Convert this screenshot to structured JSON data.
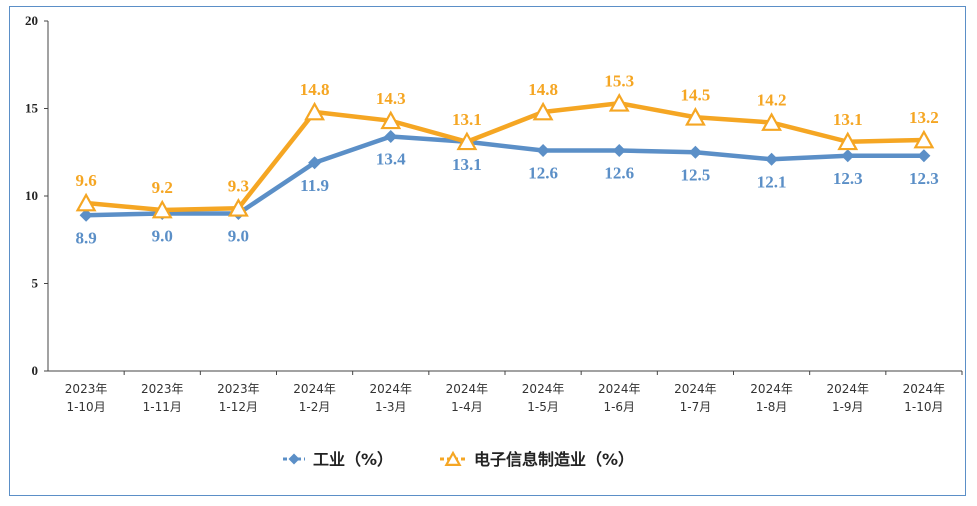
{
  "chart_data": {
    "type": "line",
    "title": "",
    "xlabel": "",
    "ylabel": "",
    "ylim": [
      0,
      20
    ],
    "yticks": [
      "0",
      "5",
      "10",
      "15",
      "20"
    ],
    "categories": [
      [
        "2023年",
        "1-10月"
      ],
      [
        "2023年",
        "1-11月"
      ],
      [
        "2023年",
        "1-12月"
      ],
      [
        "2024年",
        "1-2月"
      ],
      [
        "2024年",
        "1-3月"
      ],
      [
        "2024年",
        "1-4月"
      ],
      [
        "2024年",
        "1-5月"
      ],
      [
        "2024年",
        "1-6月"
      ],
      [
        "2024年",
        "1-7月"
      ],
      [
        "2024年",
        "1-8月"
      ],
      [
        "2024年",
        "1-9月"
      ],
      [
        "2024年",
        "1-10月"
      ]
    ],
    "series": [
      {
        "name": "工业（%）",
        "color": "#5b8fc7",
        "marker": "diamond",
        "values": [
          8.9,
          9.0,
          9.0,
          11.9,
          13.4,
          13.1,
          12.6,
          12.6,
          12.5,
          12.1,
          12.3,
          12.3
        ],
        "labels": [
          "8.9",
          "9.0",
          "9.0",
          "11.9",
          "13.4",
          "13.1",
          "12.6",
          "12.6",
          "12.5",
          "12.1",
          "12.3",
          "12.3"
        ]
      },
      {
        "name": "电子信息制造业（%）",
        "color": "#f5a623",
        "marker": "triangle",
        "values": [
          9.6,
          9.2,
          9.3,
          14.8,
          14.3,
          13.1,
          14.8,
          15.3,
          14.5,
          14.2,
          13.1,
          13.2
        ],
        "labels": [
          "9.6",
          "9.2",
          "9.3",
          "14.8",
          "14.3",
          "13.1",
          "14.8",
          "15.3",
          "14.5",
          "14.2",
          "13.1",
          "13.2"
        ]
      }
    ],
    "grid": false,
    "legend_position": "bottom"
  }
}
